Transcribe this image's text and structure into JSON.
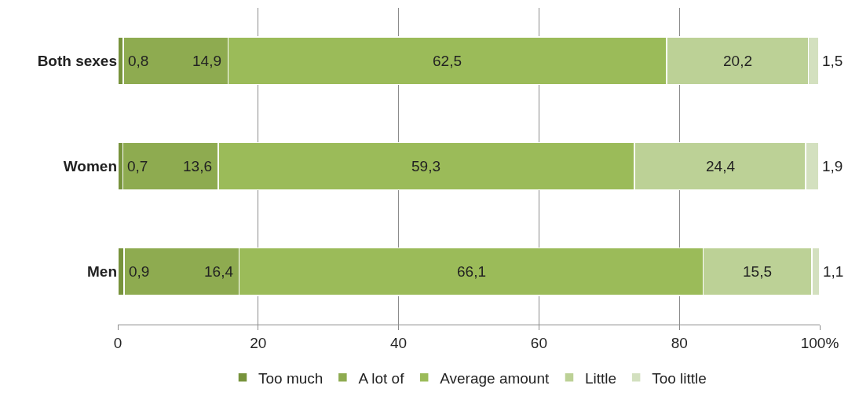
{
  "chart_data": {
    "type": "bar",
    "orientation": "horizontal",
    "stacked": true,
    "categories": [
      "Both sexes",
      "Women",
      "Men"
    ],
    "series": [
      {
        "name": "Too much",
        "color": "#77933c",
        "values": [
          0.8,
          0.7,
          0.9
        ],
        "value_labels": [
          "0,8",
          "0,7",
          "0,9"
        ]
      },
      {
        "name": "A lot of",
        "color": "#8eab50",
        "values": [
          14.9,
          13.6,
          16.4
        ],
        "value_labels": [
          "14,9",
          "13,6",
          "16,4"
        ]
      },
      {
        "name": "Average amount",
        "color": "#9bbb59",
        "values": [
          62.5,
          59.3,
          66.1
        ],
        "value_labels": [
          "62,5",
          "59,3",
          "66,1"
        ]
      },
      {
        "name": "Little",
        "color": "#bcd196",
        "values": [
          20.2,
          24.4,
          15.5
        ],
        "value_labels": [
          "20,2",
          "24,4",
          "15,5"
        ]
      },
      {
        "name": "Too little",
        "color": "#d3e0bf",
        "values": [
          1.5,
          1.9,
          1.1
        ],
        "value_labels": [
          "1,5",
          "1,9",
          "1,1"
        ]
      }
    ],
    "xlim": [
      0,
      100
    ],
    "xticks": [
      0,
      20,
      40,
      60,
      80,
      {
        "value": 100,
        "label": "100%"
      }
    ],
    "grid": "x",
    "legend": "bottom"
  }
}
